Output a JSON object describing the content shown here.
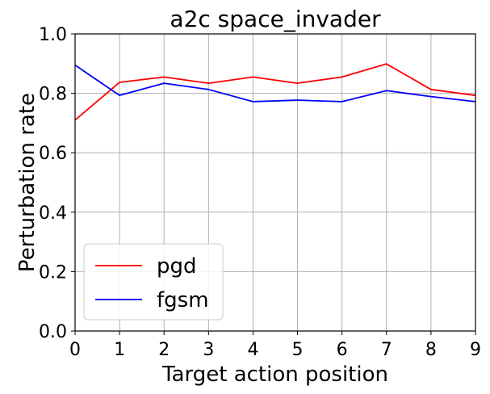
{
  "chart_data": {
    "type": "line",
    "title": "a2c space_invader",
    "xlabel": "Target action position",
    "ylabel": "Perturbation rate",
    "x": [
      0,
      1,
      2,
      3,
      4,
      5,
      6,
      7,
      8,
      9
    ],
    "xlim": [
      0,
      9
    ],
    "ylim": [
      0.0,
      1.0
    ],
    "xticks": [
      "0",
      "1",
      "2",
      "3",
      "4",
      "5",
      "6",
      "7",
      "8",
      "9"
    ],
    "yticks": [
      "0.0",
      "0.2",
      "0.4",
      "0.6",
      "0.8",
      "1.0"
    ],
    "grid": true,
    "legend_position": "lower-left",
    "series": [
      {
        "name": "pgd",
        "color": "#ff0000",
        "values": [
          0.71,
          0.837,
          0.855,
          0.834,
          0.855,
          0.834,
          0.855,
          0.899,
          0.813,
          0.793
        ]
      },
      {
        "name": "fgsm",
        "color": "#0000ff",
        "values": [
          0.895,
          0.793,
          0.834,
          0.813,
          0.772,
          0.777,
          0.772,
          0.809,
          0.789,
          0.772
        ]
      }
    ]
  }
}
